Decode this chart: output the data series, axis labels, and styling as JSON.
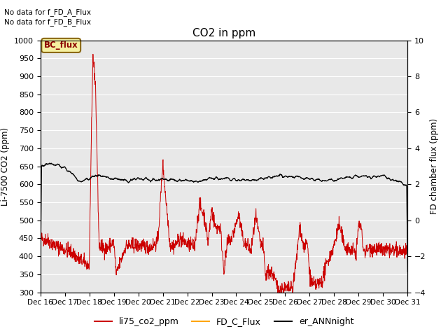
{
  "title": "CO2 in ppm",
  "ylabel_left": "Li-7500 CO2 (ppm)",
  "ylabel_right": "FD chamber flux (ppm)",
  "ylim_left": [
    300,
    1000
  ],
  "ylim_right": [
    -4,
    10
  ],
  "yticks_left": [
    300,
    350,
    400,
    450,
    500,
    550,
    600,
    650,
    700,
    750,
    800,
    850,
    900,
    950,
    1000
  ],
  "yticks_right": [
    -4,
    -2,
    0,
    2,
    4,
    6,
    8,
    10
  ],
  "note1": "No data for f_FD_A_Flux",
  "note2": "No data for f_FD_B_Flux",
  "legend_label_text": "BC_flux",
  "legend_entries": [
    "li75_co2_ppm",
    "FD_C_Flux",
    "er_ANNnight"
  ],
  "color_red": "#cc0000",
  "color_orange": "#ffa500",
  "color_black": "#000000",
  "bg_color": "#e8e8e8",
  "grid_color": "#ffffff",
  "xtick_labels": [
    "Dec 16",
    "Dec 17",
    "Dec 18",
    "Dec 19",
    "Dec 20",
    "Dec 21",
    "Dec 22",
    "Dec 23",
    "Dec 24",
    "Dec 25",
    "Dec 26",
    "Dec 27",
    "Dec 28",
    "Dec 29",
    "Dec 30",
    "Dec 31"
  ]
}
